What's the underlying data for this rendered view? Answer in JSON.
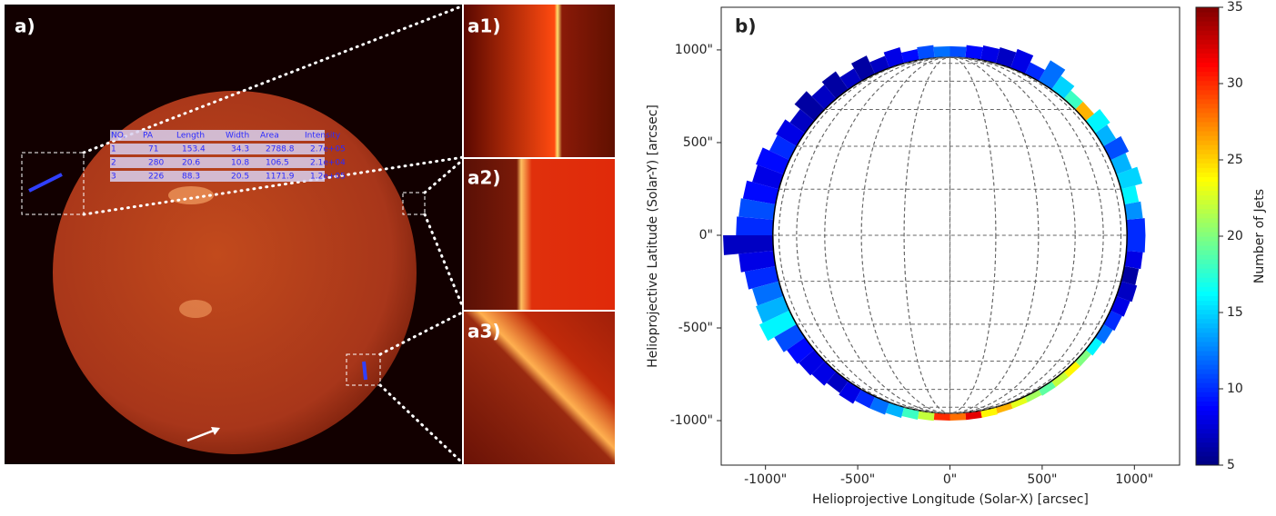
{
  "panel_a": {
    "label": "a)",
    "insets": [
      "a1)",
      "a2)",
      "a3)"
    ],
    "table": {
      "header": [
        "NO.",
        "PA",
        "Length",
        "Width",
        "Area",
        "Intensity"
      ],
      "rows": [
        [
          "1",
          "71",
          "153.4",
          "34.3",
          "2788.8",
          "2.7e+05"
        ],
        [
          "2",
          "280",
          "20.6",
          "10.8",
          "106.5",
          "2.1e+04"
        ],
        [
          "3",
          "226",
          "88.3",
          "20.5",
          "1171.9",
          "1.2e+05"
        ]
      ]
    }
  },
  "chart_data": {
    "type": "polar_bar",
    "label": "b)",
    "x_label": "Helioprojective Longitude (Solar-X) [arcsec]",
    "y_label": "Helioprojective Latitude (Solar-Y) [arcsec]",
    "colorbar_label": "Number of Jets",
    "colormap": "jet",
    "xlim": [
      -1240,
      1245
    ],
    "ylim": [
      -1240,
      1230
    ],
    "xticks": [
      {
        "value": -1000,
        "label": "-1000\""
      },
      {
        "value": -500,
        "label": "-500\""
      },
      {
        "value": 0,
        "label": "0\""
      },
      {
        "value": 500,
        "label": "500\""
      },
      {
        "value": 1000,
        "label": "1000\""
      }
    ],
    "yticks": [
      {
        "value": -1000,
        "label": "-1000\""
      },
      {
        "value": -500,
        "label": "-500\""
      },
      {
        "value": 0,
        "label": "0\""
      },
      {
        "value": 500,
        "label": "500\""
      },
      {
        "value": 1000,
        "label": "1000\""
      }
    ],
    "clim": [
      5,
      35
    ],
    "cticks": [
      5,
      10,
      15,
      20,
      25,
      30,
      35
    ],
    "angles": [
      2.5,
      7.5,
      12.5,
      17.5,
      22.5,
      27.5,
      32.5,
      37.5,
      42.5,
      47.5,
      52.5,
      57.5,
      62.5,
      67.5,
      72.5,
      77.5,
      82.5,
      87.5,
      92.5,
      97.5,
      102.5,
      107.5,
      112.5,
      117.5,
      122.5,
      127.5,
      132.5,
      137.5,
      142.5,
      147.5,
      152.5,
      157.5,
      162.5,
      167.5,
      172.5,
      177.5,
      182.5,
      187.5,
      192.5,
      197.5,
      202.5,
      207.5,
      212.5,
      217.5,
      222.5,
      227.5,
      232.5,
      237.5,
      242.5,
      247.5,
      252.5,
      257.5,
      262.5,
      267.5,
      272.5,
      277.5,
      282.5,
      287.5,
      292.5,
      297.5,
      302.5,
      307.5,
      312.5,
      317.5,
      322.5,
      327.5,
      332.5,
      337.5,
      342.5,
      347.5,
      352.5,
      357.5
    ],
    "counts": [
      12,
      11,
      9,
      8,
      7,
      6,
      7,
      6,
      7,
      6,
      7,
      8,
      10,
      9,
      8,
      9,
      11,
      10,
      7,
      8,
      10,
      12,
      14,
      16,
      11,
      9,
      8,
      8,
      7,
      8,
      10,
      12,
      14,
      18,
      22,
      30,
      28,
      32,
      24,
      26,
      23,
      21,
      19,
      22,
      24,
      20,
      16,
      12,
      10,
      8,
      7,
      6,
      8,
      10,
      10,
      13,
      16,
      15,
      14,
      11,
      14,
      16,
      26,
      18,
      15,
      12,
      10,
      8,
      7,
      8,
      9,
      11
    ],
    "heights": [
      60,
      70,
      60,
      90,
      70,
      110,
      80,
      120,
      100,
      140,
      100,
      130,
      120,
      160,
      150,
      180,
      190,
      200,
      270,
      190,
      170,
      150,
      160,
      180,
      140,
      120,
      110,
      100,
      80,
      90,
      70,
      70,
      60,
      50,
      45,
      40,
      40,
      40,
      40,
      35,
      35,
      35,
      40,
      40,
      40,
      40,
      50,
      60,
      70,
      80,
      90,
      80,
      90,
      100,
      100,
      90,
      80,
      120,
      90,
      110,
      80,
      100,
      60,
      60,
      90,
      130,
      70,
      110,
      90,
      80,
      70,
      60
    ]
  }
}
